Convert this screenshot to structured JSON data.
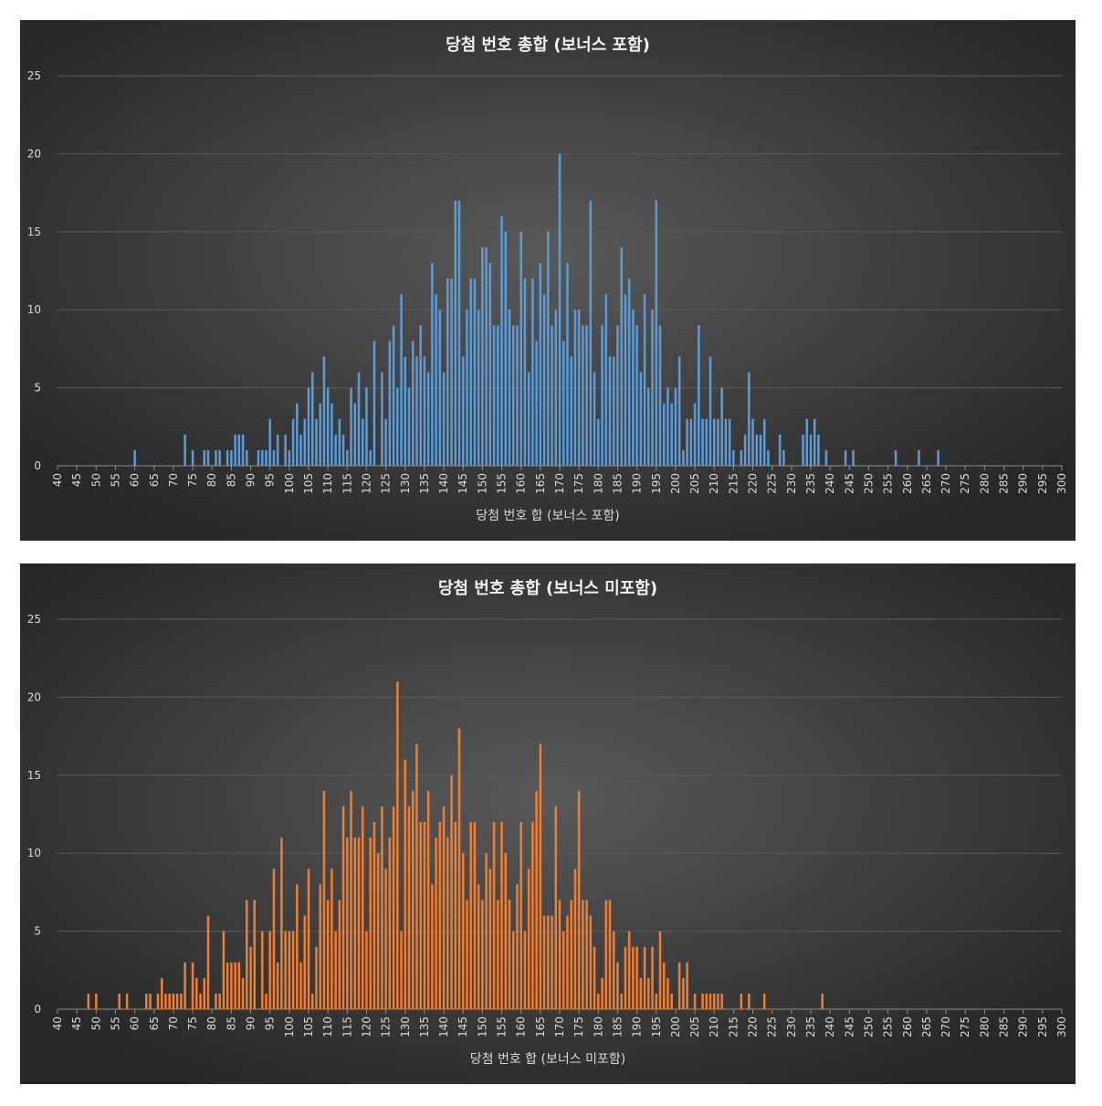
{
  "chart_data": [
    {
      "type": "bar",
      "title": "당첨 번호 총합 (보너스 포함)",
      "x_label": "당첨 번호 합 (보너스 포함)",
      "color": "#5b9bd5",
      "grid": true,
      "xlim": [
        40,
        300
      ],
      "ylim": [
        0,
        25
      ],
      "xticks": [
        40,
        45,
        50,
        55,
        60,
        65,
        70,
        75,
        80,
        85,
        90,
        95,
        100,
        105,
        110,
        115,
        120,
        125,
        130,
        135,
        140,
        145,
        150,
        155,
        160,
        165,
        170,
        175,
        180,
        185,
        190,
        195,
        200,
        205,
        210,
        215,
        220,
        225,
        230,
        235,
        240,
        245,
        250,
        255,
        260,
        265,
        270,
        275,
        280,
        285,
        290,
        295,
        300
      ],
      "yticks": [
        0,
        5,
        10,
        15,
        20,
        25
      ],
      "x": [
        60,
        73,
        75,
        78,
        79,
        81,
        82,
        84,
        85,
        86,
        87,
        88,
        89,
        92,
        93,
        94,
        95,
        96,
        97,
        99,
        100,
        101,
        102,
        103,
        104,
        105,
        106,
        107,
        108,
        109,
        110,
        111,
        112,
        113,
        114,
        115,
        116,
        117,
        118,
        119,
        120,
        121,
        122,
        124,
        125,
        126,
        127,
        128,
        129,
        130,
        131,
        132,
        133,
        134,
        135,
        136,
        137,
        138,
        139,
        140,
        141,
        142,
        143,
        144,
        145,
        146,
        147,
        148,
        149,
        150,
        151,
        152,
        153,
        154,
        155,
        156,
        157,
        158,
        159,
        160,
        161,
        162,
        163,
        164,
        165,
        166,
        167,
        168,
        169,
        170,
        171,
        172,
        173,
        174,
        175,
        176,
        177,
        178,
        179,
        180,
        181,
        182,
        183,
        184,
        185,
        186,
        187,
        188,
        189,
        190,
        191,
        192,
        193,
        194,
        195,
        196,
        197,
        198,
        199,
        200,
        201,
        202,
        203,
        204,
        205,
        206,
        207,
        208,
        209,
        210,
        211,
        212,
        213,
        214,
        215,
        217,
        218,
        219,
        220,
        221,
        222,
        223,
        224,
        227,
        228,
        233,
        234,
        235,
        236,
        237,
        239,
        244,
        246,
        257,
        263,
        268
      ],
      "values": [
        1,
        2,
        1,
        1,
        1,
        1,
        1,
        1,
        1,
        2,
        2,
        2,
        1,
        1,
        1,
        1,
        3,
        1,
        2,
        2,
        1,
        3,
        4,
        2,
        3,
        5,
        6,
        3,
        4,
        7,
        5,
        4,
        2,
        3,
        2,
        1,
        5,
        4,
        6,
        3,
        5,
        1,
        8,
        6,
        3,
        8,
        9,
        5,
        11,
        7,
        5,
        8,
        7,
        9,
        7,
        6,
        13,
        11,
        10,
        6,
        12,
        12,
        17,
        17,
        7,
        10,
        12,
        12,
        10,
        14,
        14,
        13,
        9,
        9,
        16,
        15,
        10,
        9,
        9,
        15,
        12,
        6,
        12,
        8,
        13,
        11,
        15,
        9,
        10,
        20,
        8,
        13,
        7,
        10,
        10,
        9,
        9,
        17,
        6,
        3,
        9,
        11,
        7,
        7,
        9,
        14,
        11,
        12,
        10,
        9,
        6,
        11,
        5,
        10,
        17,
        9,
        4,
        5,
        4,
        5,
        7,
        1,
        3,
        3,
        4,
        9,
        3,
        3,
        7,
        3,
        3,
        5,
        3,
        3,
        1,
        1,
        2,
        6,
        3,
        2,
        2,
        3,
        1,
        2,
        1,
        2,
        3,
        2,
        3,
        2,
        1,
        1,
        1,
        1,
        1,
        1
      ]
    },
    {
      "type": "bar",
      "title": "당첨 번호 총합 (보너스 미포함)",
      "x_label": "당첨 번호 합 (보너스 미포함)",
      "color": "#ed7d31",
      "grid": true,
      "xlim": [
        40,
        300
      ],
      "ylim": [
        0,
        25
      ],
      "xticks": [
        40,
        45,
        50,
        55,
        60,
        65,
        70,
        75,
        80,
        85,
        90,
        95,
        100,
        105,
        110,
        115,
        120,
        125,
        130,
        135,
        140,
        145,
        150,
        155,
        160,
        165,
        170,
        175,
        180,
        185,
        190,
        195,
        200,
        205,
        210,
        215,
        220,
        225,
        230,
        235,
        240,
        245,
        250,
        255,
        260,
        265,
        270,
        275,
        280,
        285,
        290,
        295,
        300
      ],
      "yticks": [
        0,
        5,
        10,
        15,
        20,
        25
      ],
      "x": [
        48,
        50,
        56,
        58,
        63,
        64,
        66,
        67,
        68,
        69,
        70,
        71,
        72,
        73,
        75,
        76,
        77,
        78,
        79,
        81,
        82,
        83,
        84,
        85,
        86,
        87,
        88,
        89,
        90,
        91,
        93,
        94,
        95,
        96,
        97,
        98,
        99,
        100,
        101,
        102,
        103,
        104,
        105,
        106,
        107,
        108,
        109,
        110,
        111,
        112,
        113,
        114,
        115,
        116,
        117,
        118,
        119,
        120,
        121,
        122,
        123,
        124,
        125,
        126,
        127,
        128,
        129,
        130,
        131,
        132,
        133,
        134,
        135,
        136,
        137,
        138,
        139,
        140,
        141,
        142,
        143,
        144,
        145,
        146,
        147,
        148,
        149,
        150,
        151,
        152,
        153,
        154,
        155,
        156,
        157,
        158,
        159,
        160,
        161,
        162,
        163,
        164,
        165,
        166,
        167,
        168,
        169,
        170,
        171,
        172,
        173,
        174,
        175,
        176,
        177,
        178,
        179,
        180,
        181,
        182,
        183,
        184,
        185,
        186,
        187,
        188,
        189,
        190,
        191,
        192,
        193,
        194,
        195,
        196,
        197,
        198,
        199,
        201,
        202,
        203,
        205,
        207,
        208,
        209,
        210,
        211,
        212,
        217,
        219,
        223,
        238
      ],
      "values": [
        1,
        1,
        1,
        1,
        1,
        1,
        1,
        2,
        1,
        1,
        1,
        1,
        1,
        3,
        3,
        2,
        1,
        2,
        6,
        1,
        1,
        5,
        3,
        3,
        3,
        3,
        2,
        7,
        4,
        7,
        5,
        1,
        5,
        9,
        3,
        11,
        5,
        5,
        5,
        8,
        3,
        6,
        9,
        1,
        4,
        8,
        14,
        7,
        9,
        5,
        7,
        13,
        11,
        14,
        11,
        11,
        13,
        5,
        11,
        12,
        10,
        13,
        9,
        11,
        13,
        21,
        5,
        16,
        13,
        14,
        17,
        12,
        12,
        14,
        8,
        11,
        12,
        13,
        11,
        15,
        12,
        18,
        10,
        7,
        12,
        12,
        8,
        7,
        10,
        9,
        12,
        7,
        12,
        10,
        7,
        5,
        8,
        12,
        5,
        9,
        12,
        14,
        17,
        6,
        6,
        6,
        13,
        7,
        5,
        6,
        7,
        9,
        14,
        7,
        7,
        6,
        4,
        1,
        2,
        7,
        7,
        5,
        3,
        1,
        4,
        5,
        4,
        4,
        2,
        4,
        2,
        4,
        1,
        5,
        3,
        2,
        1,
        3,
        2,
        3,
        1,
        1,
        1,
        1,
        1,
        1,
        1,
        1,
        1,
        1,
        1
      ]
    }
  ]
}
